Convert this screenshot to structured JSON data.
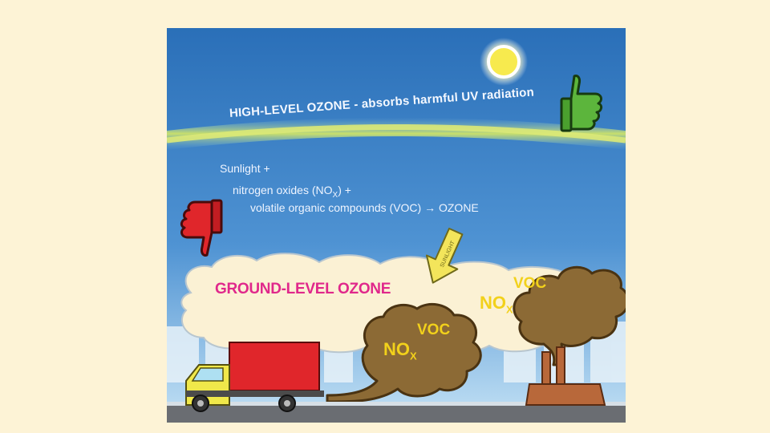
{
  "high_level": {
    "label": "HIGH-LEVEL OZONE - absorbs harmful UV radiation"
  },
  "equation": {
    "line1": "Sunlight +",
    "line2_main": "nitrogen oxides (NO",
    "line2_sub": "X",
    "line2_end": ") +",
    "line3": "volatile organic compounds (VOC) → OZONE"
  },
  "ground_level": {
    "label": "GROUND-LEVEL OZONE",
    "sunlight_arrow_label": "SUNLIGHT"
  },
  "emissions": {
    "truck": {
      "nox": "NO",
      "nox_sub": "X",
      "voc": "VOC"
    },
    "factory": {
      "nox": "NO",
      "nox_sub": "X",
      "voc": "VOC"
    }
  },
  "colors": {
    "sky_top": "#2a6fb8",
    "sky_bottom": "#b9dcf3",
    "ozone_band": "#c8df6c",
    "ground_ozone_text": "#e0288b",
    "pollutant_text": "#f2d11b",
    "smog": "#8c6a35",
    "thumbs_up": "#5cb53c",
    "thumbs_down": "#e0262b",
    "truck_box": "#e0262b",
    "truck_cab": "#f0e84a"
  },
  "icons": [
    "sun-icon",
    "thumbs-up-icon",
    "thumbs-down-icon",
    "truck-icon",
    "factory-icon",
    "sunlight-arrow-icon"
  ]
}
